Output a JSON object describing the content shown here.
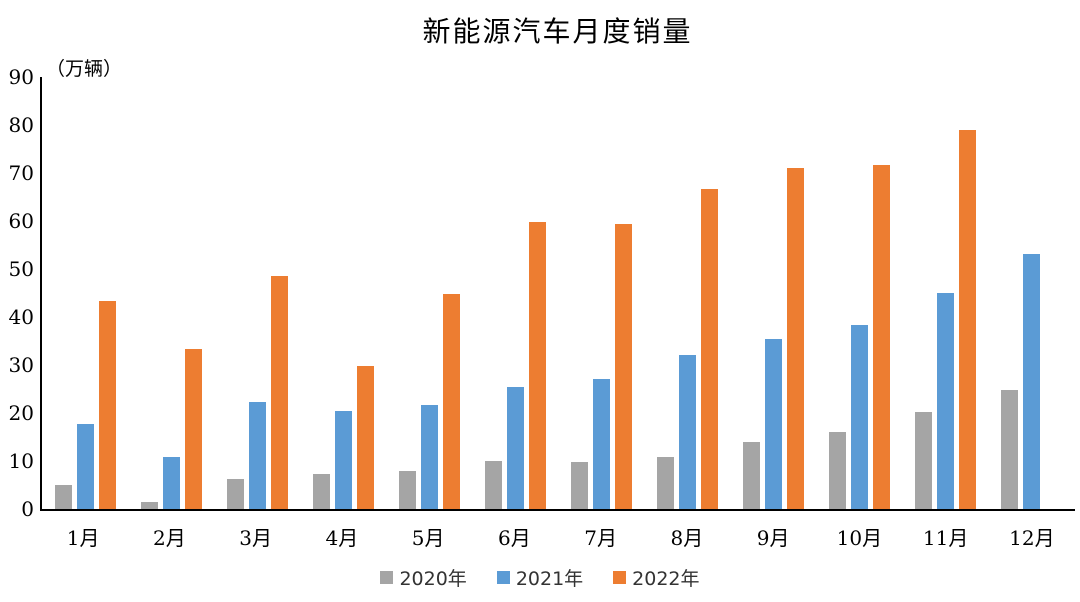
{
  "title": "新能源汽车月度销量",
  "y_axis": {
    "unit_label": "（万辆）",
    "ticks": [
      0,
      10,
      20,
      30,
      40,
      50,
      60,
      70,
      80,
      90
    ]
  },
  "chart_data": {
    "type": "bar",
    "title": "新能源汽车月度销量",
    "xlabel": "",
    "ylabel": "（万辆）",
    "ylim": [
      0,
      90
    ],
    "grid": false,
    "legend_position": "bottom",
    "categories": [
      "1月",
      "2月",
      "3月",
      "4月",
      "5月",
      "6月",
      "7月",
      "8月",
      "9月",
      "10月",
      "11月",
      "12月"
    ],
    "series": [
      {
        "name": "2020年",
        "color": "#A5A5A5",
        "values": [
          5.1,
          1.4,
          6.3,
          7.2,
          8.0,
          10.1,
          9.7,
          10.8,
          13.9,
          16.1,
          20.2,
          24.7
        ]
      },
      {
        "name": "2021年",
        "color": "#5B9BD5",
        "values": [
          17.7,
          10.9,
          22.3,
          20.4,
          21.6,
          25.5,
          27.0,
          32.0,
          35.5,
          38.3,
          45.1,
          53.2
        ]
      },
      {
        "name": "2022年",
        "color": "#ED7D31",
        "values": [
          43.3,
          33.4,
          48.5,
          29.8,
          44.8,
          59.8,
          59.4,
          66.7,
          71.1,
          71.7,
          78.9,
          null
        ]
      }
    ]
  },
  "legend": {
    "items": [
      {
        "label": "2020年",
        "color": "#A5A5A5"
      },
      {
        "label": "2021年",
        "color": "#5B9BD5"
      },
      {
        "label": "2022年",
        "color": "#ED7D31"
      }
    ]
  }
}
